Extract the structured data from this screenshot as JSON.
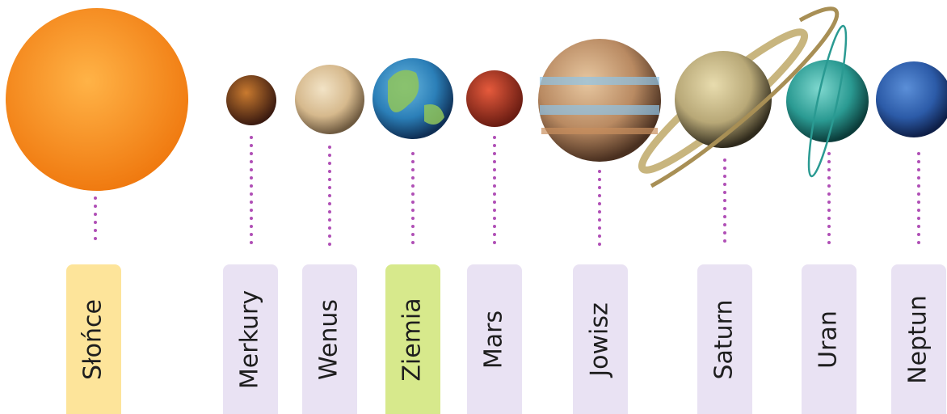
{
  "labels": [
    "Słońce",
    "Merkury",
    "Wenus",
    "Ziemia",
    "Mars",
    "Jowisz",
    "Saturn",
    "Uran",
    "Neptun"
  ]
}
